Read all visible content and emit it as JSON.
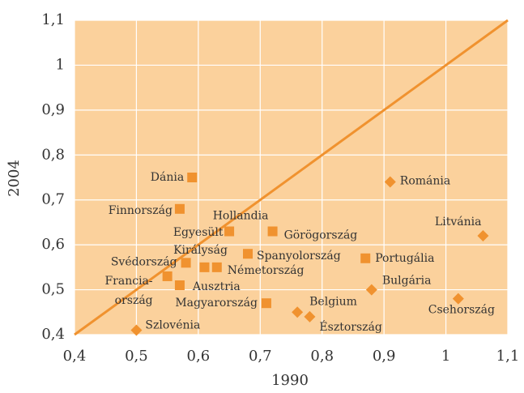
{
  "chart_data": {
    "type": "scatter",
    "xlabel": "1990",
    "ylabel": "2004",
    "xlim": [
      0.4,
      1.1
    ],
    "ylim": [
      0.4,
      1.1
    ],
    "xticks": [
      {
        "value": 0.4,
        "label": "0,4"
      },
      {
        "value": 0.5,
        "label": "0,5"
      },
      {
        "value": 0.6,
        "label": "0,6"
      },
      {
        "value": 0.7,
        "label": "0,7"
      },
      {
        "value": 0.8,
        "label": "0,8"
      },
      {
        "value": 0.9,
        "label": "0,9"
      },
      1,
      {
        "value": 1.1,
        "label": "1,1"
      }
    ],
    "yticks": [
      {
        "value": 0.4,
        "label": "0,4"
      },
      {
        "value": 0.5,
        "label": "0,5"
      },
      {
        "value": 0.6,
        "label": "0,6"
      },
      {
        "value": 0.7,
        "label": "0,7"
      },
      {
        "value": 0.8,
        "label": "0,8"
      },
      {
        "value": 0.9,
        "label": "0,9"
      },
      1,
      {
        "value": 1.1,
        "label": "1,1"
      }
    ],
    "grid": true,
    "diagonal": true,
    "series": [
      {
        "marker": "square",
        "color": "#f0922f",
        "labels": [
          [
            "Dánia"
          ],
          [
            "Finnország"
          ],
          [
            "Hollandia"
          ],
          [
            "Egyesült",
            "Királyság"
          ],
          [
            "Görögország"
          ],
          [
            "Spanyolország"
          ],
          [
            "Svédország"
          ],
          [
            "Németország"
          ],
          [
            "Francia-",
            "ország"
          ],
          [
            "Ausztria"
          ],
          [
            "Magyarország"
          ],
          [
            "Portugália"
          ]
        ],
        "x": [
          0.59,
          0.57,
          0.65,
          0.61,
          0.72,
          0.68,
          0.58,
          0.63,
          0.55,
          0.57,
          0.71,
          0.87
        ],
        "values": [
          0.75,
          0.68,
          0.63,
          0.55,
          0.63,
          0.58,
          0.56,
          0.55,
          0.53,
          0.51,
          0.47,
          0.57
        ]
      },
      {
        "marker": "diamond",
        "color": "#f0922f",
        "labels": [
          [
            "Románia"
          ],
          [
            "Litvánia"
          ],
          [
            "Bulgária"
          ],
          [
            "Csehország"
          ],
          [
            "Belgium"
          ],
          [
            "Észtország"
          ],
          [
            "Szlovénia"
          ]
        ],
        "x": [
          0.91,
          1.06,
          0.88,
          1.02,
          0.76,
          0.78,
          0.5
        ],
        "values": [
          0.74,
          0.62,
          0.5,
          0.48,
          0.45,
          0.44,
          0.41
        ]
      }
    ]
  }
}
